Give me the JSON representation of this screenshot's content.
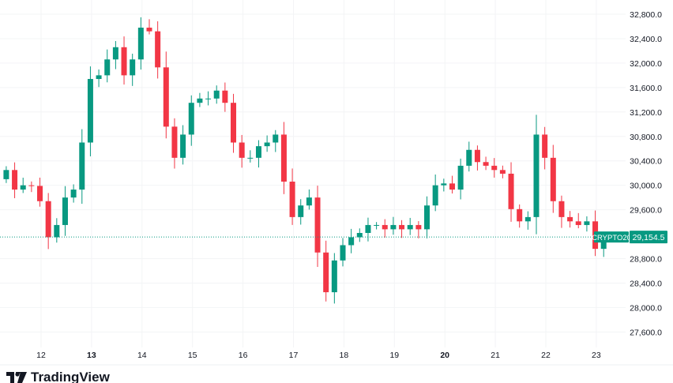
{
  "chart_data": {
    "type": "candlestick",
    "symbol": "CRYPTO20",
    "last_price": "29,154.5",
    "last_price_value": 29154.5,
    "y_ticks": [
      "32,800.0",
      "32,400.0",
      "32,000.0",
      "31,600.0",
      "31,200.0",
      "30,800.0",
      "30,400.0",
      "30,000.0",
      "29,600.0",
      "28,800.0",
      "28,400.0",
      "28,000.0",
      "27,600.0"
    ],
    "y_tick_values": [
      32800,
      32400,
      32000,
      31600,
      31200,
      30800,
      30400,
      30000,
      29600,
      28800,
      28400,
      28000,
      27600
    ],
    "ylim": [
      27450,
      33000
    ],
    "x_ticks": [
      "12",
      "13",
      "14",
      "15",
      "16",
      "17",
      "18",
      "19",
      "20",
      "21",
      "22",
      "23"
    ],
    "x_tick_days": [
      12,
      13,
      14,
      15,
      16,
      17,
      18,
      19,
      20,
      21,
      22,
      23
    ],
    "x_bold": [
      "13",
      "20"
    ],
    "xlim_days": [
      11.18,
      23.6
    ],
    "candle_start_day": 11.31,
    "candle_interval_days": 0.1667,
    "first_open": 30100,
    "closes": [
      30250,
      29930,
      30000,
      29990,
      29740,
      29150,
      29350,
      29800,
      29930,
      30700,
      31740,
      31800,
      32060,
      32260,
      31800,
      32060,
      32580,
      32520,
      31930,
      30960,
      30450,
      30830,
      31350,
      31420,
      31420,
      31550,
      31350,
      30700,
      30450,
      30450,
      30640,
      30700,
      30830,
      30060,
      29480,
      29670,
      29800,
      28900,
      28250,
      28770,
      29020,
      29150,
      29220,
      29350,
      29350,
      29280,
      29350,
      29280,
      29350,
      29280,
      29670,
      30000,
      30030,
      29930,
      30320,
      30580,
      30380,
      30320,
      30250,
      30190,
      29610,
      29410,
      29480,
      30830,
      30450,
      29740,
      29480,
      29410,
      29350,
      29410,
      28960,
      29154.5
    ],
    "up_color": "#089981",
    "down_color": "#f23645"
  },
  "branding": {
    "logo_text": "TradingView"
  }
}
